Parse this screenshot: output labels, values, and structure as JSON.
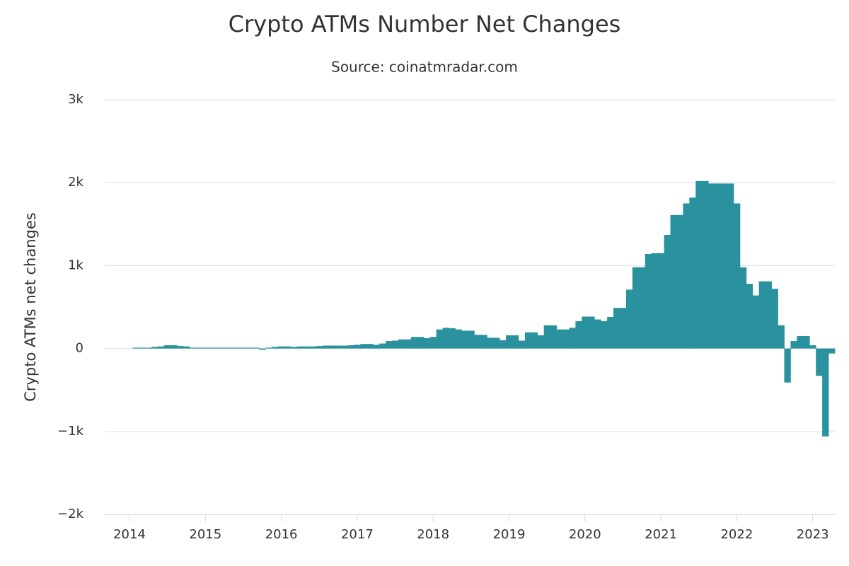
{
  "chart_data": {
    "type": "bar",
    "title": "Crypto ATMs Number Net Changes",
    "subtitle": "Source: coinatmradar.com",
    "y_label": "Crypto ATMs net changes",
    "color": "#2a929f",
    "grid": true,
    "ylim": [
      -2000,
      3000
    ],
    "yticks": [
      {
        "value": -2000,
        "label": "−2k"
      },
      {
        "value": -1000,
        "label": "−1k"
      },
      0,
      {
        "value": 1000,
        "label": "1k"
      },
      {
        "value": 2000,
        "label": "2k"
      },
      {
        "value": 3000,
        "label": "3k"
      }
    ],
    "categories": [
      "2014",
      null,
      null,
      null,
      null,
      null,
      null,
      null,
      null,
      null,
      null,
      null,
      "2015",
      null,
      null,
      null,
      null,
      null,
      null,
      null,
      null,
      null,
      null,
      null,
      "2016",
      null,
      null,
      null,
      null,
      null,
      null,
      null,
      null,
      null,
      null,
      null,
      "2017",
      null,
      null,
      null,
      null,
      null,
      null,
      null,
      null,
      null,
      null,
      null,
      "2018",
      null,
      null,
      null,
      null,
      null,
      null,
      null,
      null,
      null,
      null,
      null,
      "2019",
      null,
      null,
      null,
      null,
      null,
      null,
      null,
      null,
      null,
      null,
      null,
      "2020",
      null,
      null,
      null,
      null,
      null,
      null,
      null,
      null,
      null,
      null,
      null,
      "2021",
      null,
      null,
      null,
      null,
      null,
      null,
      null,
      null,
      null,
      null,
      null,
      "2022",
      null,
      null,
      null,
      null,
      null,
      null,
      null,
      null,
      null,
      null,
      null,
      "2023",
      null,
      null,
      null
    ],
    "values": [
      null,
      10,
      10,
      10,
      20,
      25,
      40,
      40,
      30,
      25,
      10,
      10,
      10,
      10,
      10,
      10,
      10,
      10,
      10,
      10,
      10,
      -15,
      10,
      20,
      25,
      25,
      20,
      25,
      25,
      25,
      30,
      35,
      35,
      35,
      35,
      40,
      45,
      55,
      55,
      45,
      60,
      90,
      95,
      110,
      110,
      140,
      140,
      125,
      140,
      230,
      250,
      245,
      230,
      215,
      215,
      165,
      165,
      130,
      130,
      100,
      160,
      160,
      95,
      195,
      195,
      160,
      280,
      280,
      230,
      230,
      250,
      330,
      385,
      385,
      350,
      330,
      380,
      490,
      490,
      710,
      980,
      980,
      1140,
      1150,
      1150,
      1370,
      1610,
      1610,
      1750,
      1820,
      2020,
      2020,
      1990,
      1990,
      1990,
      1990,
      1750,
      980,
      780,
      640,
      810,
      810,
      720,
      280,
      -410,
      90,
      150,
      150,
      40,
      -330,
      -1060,
      -60
    ]
  }
}
